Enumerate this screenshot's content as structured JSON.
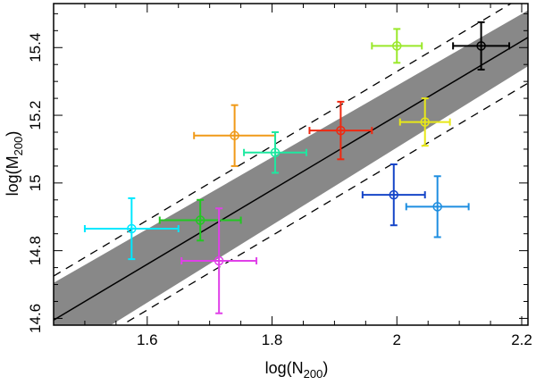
{
  "chart_data": {
    "type": "scatter",
    "title": "",
    "xlabel": {
      "main": "log(N",
      "sub": "200",
      "close": ")"
    },
    "ylabel": {
      "main": "log(M",
      "sub": "200",
      "close": ")"
    },
    "xlim": [
      1.45,
      2.21
    ],
    "ylim": [
      14.58,
      15.53
    ],
    "x_ticks": [
      {
        "value": 1.6,
        "label": "1.6"
      },
      {
        "value": 1.8,
        "label": "1.8"
      },
      {
        "value": 2.0,
        "label": "2"
      },
      {
        "value": 2.2,
        "label": "2.2"
      }
    ],
    "y_ticks": [
      {
        "value": 14.6,
        "label": "14.6"
      },
      {
        "value": 14.8,
        "label": "14.8"
      },
      {
        "value": 15.0,
        "label": "15"
      },
      {
        "value": 15.2,
        "label": "15.2"
      },
      {
        "value": 15.4,
        "label": "15.4"
      }
    ],
    "fit_line": {
      "x": [
        1.45,
        2.21
      ],
      "y": [
        14.595,
        15.43
      ],
      "color": "#000000"
    },
    "confidence_band": {
      "x": [
        1.45,
        2.21
      ],
      "upper": [
        14.705,
        15.51
      ],
      "lower": [
        14.475,
        15.345
      ],
      "color": "#888888"
    },
    "scatter_lines": {
      "upper": {
        "x": [
          1.45,
          2.21
        ],
        "y": [
          14.725,
          15.56
        ]
      },
      "lower": {
        "x": [
          1.45,
          2.21
        ],
        "y": [
          14.46,
          15.295
        ]
      },
      "style": "dashed",
      "color": "#000000"
    },
    "points": [
      {
        "x": 1.575,
        "y": 14.865,
        "xerr": 0.075,
        "yerr": 0.09,
        "color": "#00e8ff"
      },
      {
        "x": 1.685,
        "y": 14.89,
        "xerr": 0.065,
        "yerr": 0.06,
        "color": "#21c821"
      },
      {
        "x": 1.715,
        "y": 14.77,
        "xerr": 0.06,
        "yerr": 0.155,
        "color": "#e040e8"
      },
      {
        "x": 1.74,
        "y": 15.14,
        "xerr": 0.065,
        "yerr": 0.09,
        "color": "#f09a18"
      },
      {
        "x": 1.805,
        "y": 15.09,
        "xerr": 0.05,
        "yerr": 0.06,
        "color": "#1ee8a0"
      },
      {
        "x": 1.91,
        "y": 15.155,
        "xerr": 0.05,
        "yerr": 0.085,
        "color": "#f02810"
      },
      {
        "x": 2.0,
        "y": 15.405,
        "xerr": 0.04,
        "yerr": 0.05,
        "color": "#9ae82a"
      },
      {
        "x": 1.995,
        "y": 14.965,
        "xerr": 0.05,
        "yerr": 0.09,
        "color": "#1545c8"
      },
      {
        "x": 2.045,
        "y": 15.18,
        "xerr": 0.04,
        "yerr": 0.07,
        "color": "#e8e818"
      },
      {
        "x": 2.065,
        "y": 14.93,
        "xerr": 0.05,
        "yerr": 0.09,
        "color": "#1e8ee0"
      },
      {
        "x": 2.135,
        "y": 15.405,
        "xerr": 0.045,
        "yerr": 0.07,
        "color": "#000000"
      }
    ]
  }
}
